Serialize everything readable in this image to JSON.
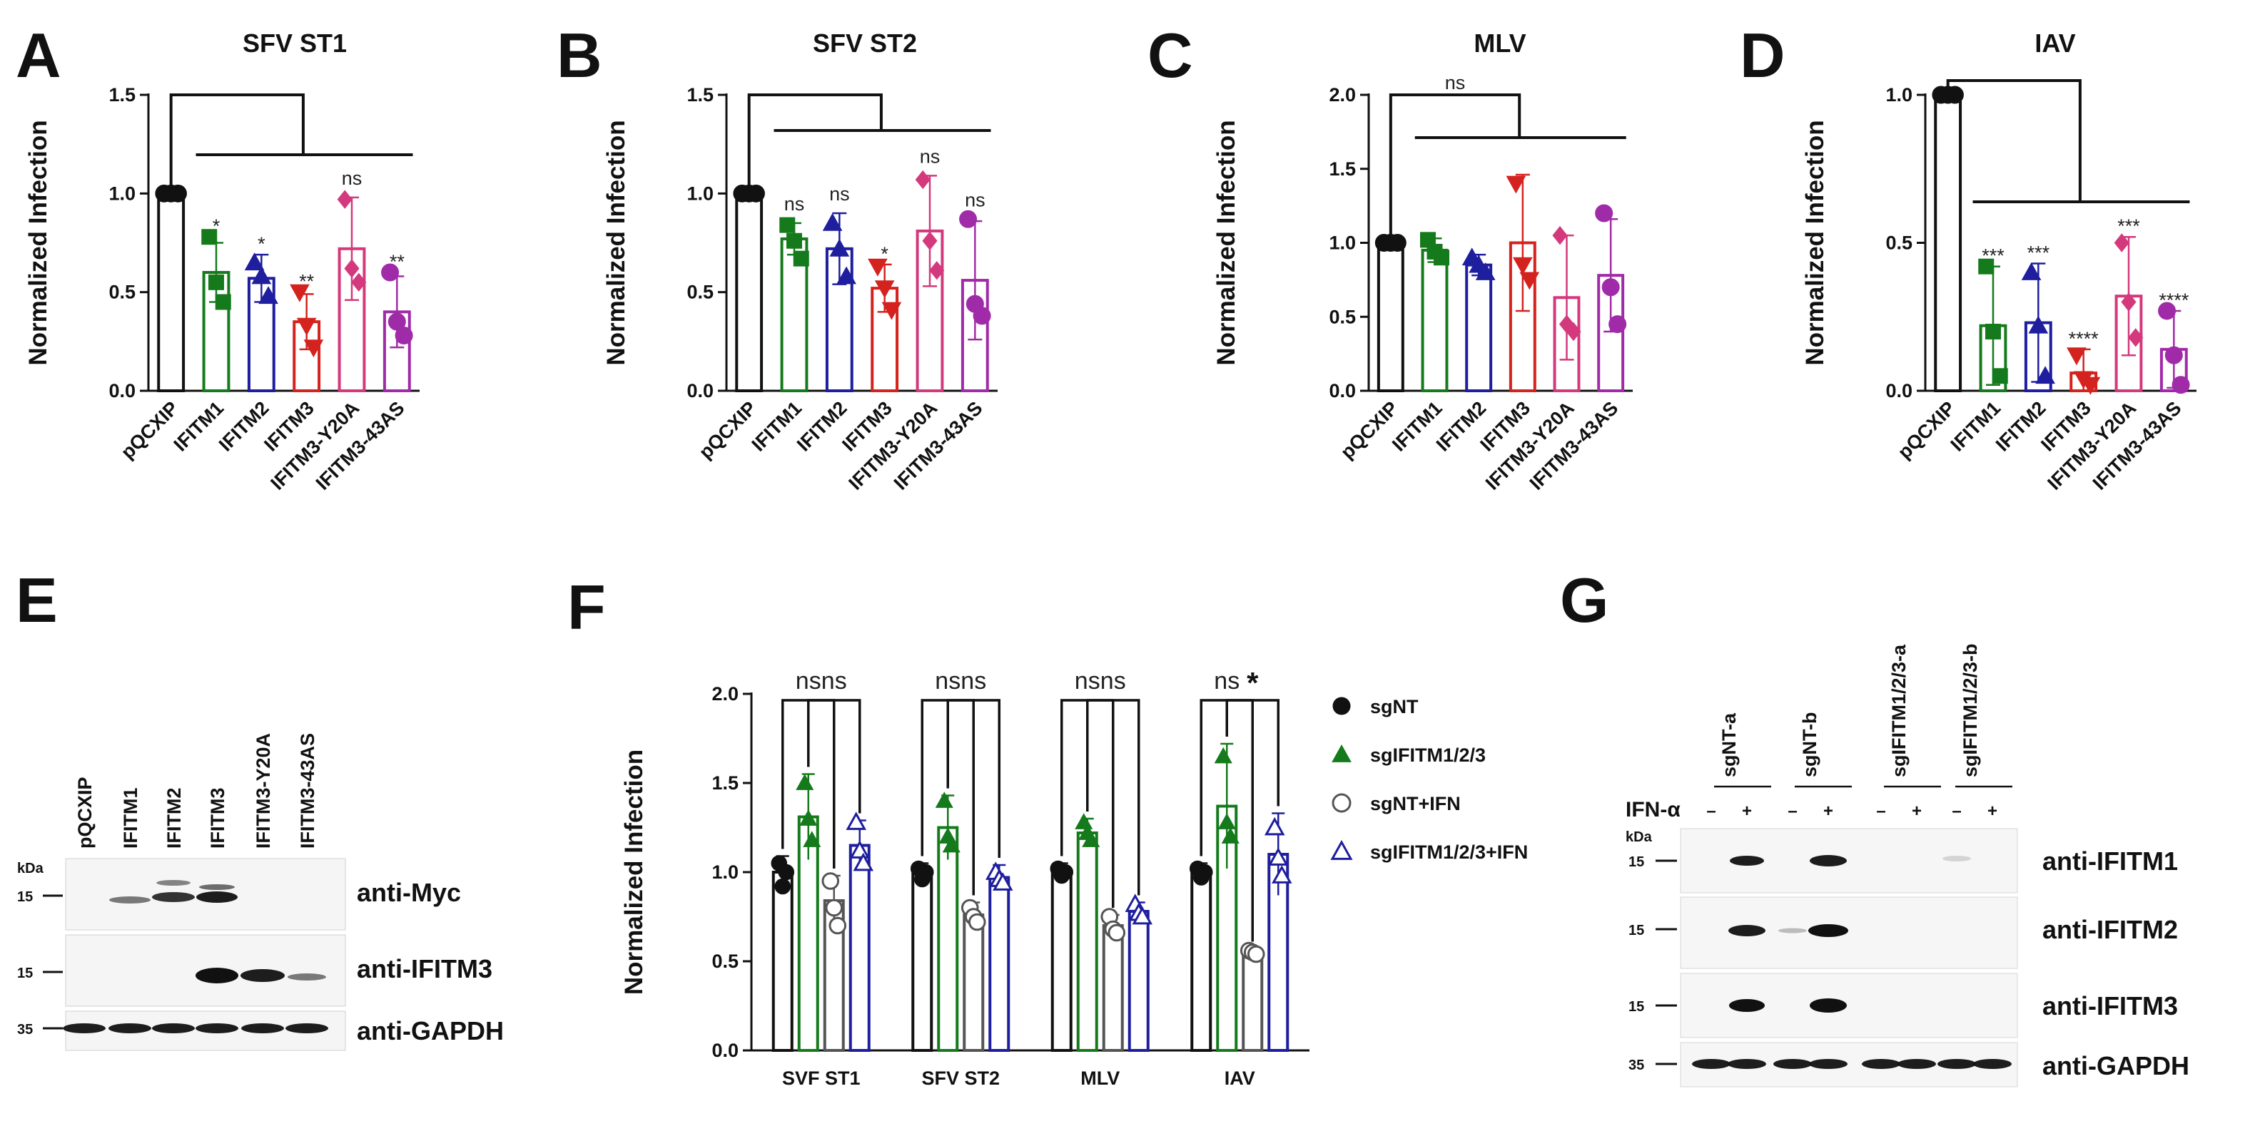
{
  "panel_letters": {
    "A": "A",
    "B": "B",
    "C": "C",
    "D": "D",
    "E": "E",
    "F": "F",
    "G": "G"
  },
  "colors": {
    "black": "#111111",
    "green": "#157a1b",
    "blue": "#1e1e9e",
    "red": "#d4231e",
    "pink": "#d3397c",
    "purple": "#a02ba8",
    "gray": "#555555"
  },
  "chart_data": [
    {
      "id": "A",
      "type": "bar",
      "title": "SFV ST1",
      "ylabel": "Normalized Infection",
      "categories": [
        "pQCXIP",
        "IFITM1",
        "IFITM2",
        "IFITM3",
        "IFITM3-Y20A",
        "IFITM3-43AS"
      ],
      "values": [
        1.0,
        0.6,
        0.57,
        0.35,
        0.72,
        0.4
      ],
      "errors": [
        0,
        0.15,
        0.12,
        0.14,
        0.26,
        0.18
      ],
      "points": [
        [
          1,
          1,
          1
        ],
        [
          0.78,
          0.55,
          0.45
        ],
        [
          0.65,
          0.58,
          0.48
        ],
        [
          0.5,
          0.33,
          0.22
        ],
        [
          0.97,
          0.62,
          0.55
        ],
        [
          0.6,
          0.35,
          0.28
        ]
      ],
      "significance": [
        "",
        "*",
        "*",
        "**",
        "ns",
        "**"
      ],
      "ylim": [
        0,
        1.5
      ],
      "yticks": [
        0,
        0.5,
        1.0,
        1.5
      ],
      "ytick_labels": [
        "0.0",
        "0.5",
        "1.0",
        "1.5"
      ],
      "markers": [
        "circle",
        "square",
        "triangle",
        "tri-down",
        "diamond",
        "circle"
      ],
      "colors": [
        "#111111",
        "#157a1b",
        "#1e1e9e",
        "#d4231e",
        "#d3397c",
        "#a02ba8"
      ]
    },
    {
      "id": "B",
      "type": "bar",
      "title": "SFV ST2",
      "ylabel": "Normalized Infection",
      "categories": [
        "pQCXIP",
        "IFITM1",
        "IFITM2",
        "IFITM3",
        "IFITM3-Y20A",
        "IFITM3-43AS"
      ],
      "values": [
        1.0,
        0.77,
        0.72,
        0.52,
        0.81,
        0.56
      ],
      "errors": [
        0,
        0.08,
        0.18,
        0.12,
        0.28,
        0.3
      ],
      "points": [
        [
          1,
          1,
          1
        ],
        [
          0.84,
          0.76,
          0.67
        ],
        [
          0.85,
          0.72,
          0.58
        ],
        [
          0.63,
          0.52,
          0.41
        ],
        [
          1.07,
          0.76,
          0.61
        ],
        [
          0.87,
          0.44,
          0.38
        ]
      ],
      "significance": [
        "",
        "ns",
        "ns",
        "*",
        "ns",
        "ns"
      ],
      "ylim": [
        0,
        1.5
      ],
      "yticks": [
        0,
        0.5,
        1.0,
        1.5
      ],
      "ytick_labels": [
        "0.0",
        "0.5",
        "1.0",
        "1.5"
      ],
      "markers": [
        "circle",
        "square",
        "triangle",
        "tri-down",
        "diamond",
        "circle"
      ],
      "colors": [
        "#111111",
        "#157a1b",
        "#1e1e9e",
        "#d4231e",
        "#d3397c",
        "#a02ba8"
      ]
    },
    {
      "id": "C",
      "type": "bar",
      "title": "MLV",
      "ylabel": "Normalized Infection",
      "categories": [
        "pQCXIP",
        "IFITM1",
        "IFITM2",
        "IFITM3",
        "IFITM3-Y20A",
        "IFITM3-43AS"
      ],
      "values": [
        1.0,
        0.95,
        0.85,
        1.0,
        0.63,
        0.78
      ],
      "errors": [
        0,
        0.08,
        0.07,
        0.46,
        0.42,
        0.38
      ],
      "points": [
        [
          1,
          1,
          1
        ],
        [
          1.02,
          0.94,
          0.9
        ],
        [
          0.9,
          0.85,
          0.8
        ],
        [
          1.4,
          0.85,
          0.75
        ],
        [
          1.05,
          0.45,
          0.4
        ],
        [
          1.2,
          0.7,
          0.45
        ]
      ],
      "significance": [
        "ns",
        "",
        "",
        "",
        "",
        ""
      ],
      "ylim": [
        0,
        2.0
      ],
      "yticks": [
        0,
        0.5,
        1.0,
        1.5,
        2.0
      ],
      "ytick_labels": [
        "0.0",
        "0.5",
        "1.0",
        "1.5",
        "2.0"
      ],
      "markers": [
        "circle",
        "square",
        "triangle",
        "tri-down",
        "diamond",
        "circle"
      ],
      "colors": [
        "#111111",
        "#157a1b",
        "#1e1e9e",
        "#d4231e",
        "#d3397c",
        "#a02ba8"
      ]
    },
    {
      "id": "D",
      "type": "bar",
      "title": "IAV",
      "ylabel": "Normalized Infection",
      "categories": [
        "pQCXIP",
        "IFITM1",
        "IFITM2",
        "IFITM3",
        "IFITM3-Y20A",
        "IFITM3-43AS"
      ],
      "values": [
        1.0,
        0.22,
        0.23,
        0.06,
        0.32,
        0.14
      ],
      "errors": [
        0,
        0.2,
        0.2,
        0.08,
        0.2,
        0.13
      ],
      "points": [
        [
          1,
          1,
          1
        ],
        [
          0.42,
          0.2,
          0.05
        ],
        [
          0.4,
          0.22,
          0.05
        ],
        [
          0.12,
          0.04,
          0.02
        ],
        [
          0.5,
          0.3,
          0.18
        ],
        [
          0.27,
          0.12,
          0.02
        ]
      ],
      "significance": [
        "",
        "***",
        "***",
        "****",
        "***",
        "****"
      ],
      "ylim": [
        0,
        1.0
      ],
      "yticks": [
        0,
        0.5,
        1.0
      ],
      "ytick_labels": [
        "0.0",
        "0.5",
        "1.0"
      ],
      "markers": [
        "circle",
        "square",
        "triangle",
        "tri-down",
        "diamond",
        "circle"
      ],
      "colors": [
        "#111111",
        "#157a1b",
        "#1e1e9e",
        "#d4231e",
        "#d3397c",
        "#a02ba8"
      ]
    },
    {
      "id": "F",
      "type": "bar",
      "ylabel": "Normalized Infection",
      "categories": [
        "SVF ST1",
        "SFV ST2",
        "MLV",
        "IAV"
      ],
      "series": [
        {
          "name": "sgNT",
          "values": [
            1.0,
            1.0,
            1.0,
            1.0
          ],
          "errors": [
            0.09,
            0.05,
            0.05,
            0.05
          ],
          "points": [
            [
              1.05,
              0.92,
              1.0
            ],
            [
              1.02,
              0.96,
              1.0
            ],
            [
              1.02,
              0.98,
              1.0
            ],
            [
              1.02,
              0.97,
              1.0
            ]
          ],
          "color": "#111111",
          "marker": "circle",
          "filled": true
        },
        {
          "name": "sgIFITM1/2/3",
          "values": [
            1.31,
            1.25,
            1.22,
            1.37
          ],
          "errors": [
            0.24,
            0.18,
            0.08,
            0.35
          ],
          "points": [
            [
              1.5,
              1.3,
              1.18
            ],
            [
              1.4,
              1.2,
              1.15
            ],
            [
              1.28,
              1.22,
              1.18
            ],
            [
              1.65,
              1.28,
              1.2
            ]
          ],
          "color": "#157a1b",
          "marker": "triangle",
          "filled": true
        },
        {
          "name": "sgNT+IFN",
          "values": [
            0.84,
            0.76,
            0.7,
            0.55
          ],
          "errors": [
            0.14,
            0.07,
            0.06,
            0.02
          ],
          "points": [
            [
              0.95,
              0.8,
              0.7
            ],
            [
              0.8,
              0.75,
              0.72
            ],
            [
              0.75,
              0.68,
              0.66
            ],
            [
              0.56,
              0.55,
              0.54
            ]
          ],
          "color": "#555555",
          "marker": "circle",
          "filled": false
        },
        {
          "name": "sgIFITM1/2/3+IFN",
          "values": [
            1.15,
            0.97,
            0.78,
            1.1
          ],
          "errors": [
            0.14,
            0.07,
            0.05,
            0.23
          ],
          "points": [
            [
              1.28,
              1.12,
              1.05
            ],
            [
              1.0,
              0.96,
              0.94
            ],
            [
              0.82,
              0.77,
              0.75
            ],
            [
              1.25,
              1.08,
              0.98
            ]
          ],
          "color": "#1e1e9e",
          "marker": "triangle",
          "filled": false
        }
      ],
      "significance": [
        [
          "ns",
          "ns"
        ],
        [
          "ns",
          "ns"
        ],
        [
          "ns",
          "ns"
        ],
        [
          "ns",
          "*"
        ]
      ],
      "ylim": [
        0,
        2.0
      ],
      "yticks": [
        0,
        0.5,
        1.0,
        1.5,
        2.0
      ],
      "ytick_labels": [
        "0.0",
        "0.5",
        "1.0",
        "1.5",
        "2.0"
      ],
      "legend": "right"
    }
  ],
  "western_E": {
    "lanes": [
      "pQCXIP",
      "IFITM1",
      "IFITM2",
      "IFITM3",
      "IFITM3-Y20A",
      "IFITM3-43AS"
    ],
    "kda": "kDa",
    "rows": [
      {
        "antibody": "anti-Myc",
        "marker": "15"
      },
      {
        "antibody": "anti-IFITM3",
        "marker": "15"
      },
      {
        "antibody": "anti-GAPDH",
        "marker": "35"
      }
    ]
  },
  "western_G": {
    "lanes": [
      "sgNT-a",
      "sgNT-b",
      "sgIFITM1/2/3-a",
      "sgIFITM1/2/3-b"
    ],
    "ifn_label": "IFN-α",
    "signs": [
      "–",
      "+",
      "–",
      "+",
      "–",
      "+",
      "–",
      "+"
    ],
    "kda": "kDa",
    "rows": [
      {
        "antibody": "anti-IFITM1",
        "marker": "15"
      },
      {
        "antibody": "anti-IFITM2",
        "marker": "15"
      },
      {
        "antibody": "anti-IFITM3",
        "marker": "15"
      },
      {
        "antibody": "anti-GAPDH",
        "marker": "35"
      }
    ]
  }
}
